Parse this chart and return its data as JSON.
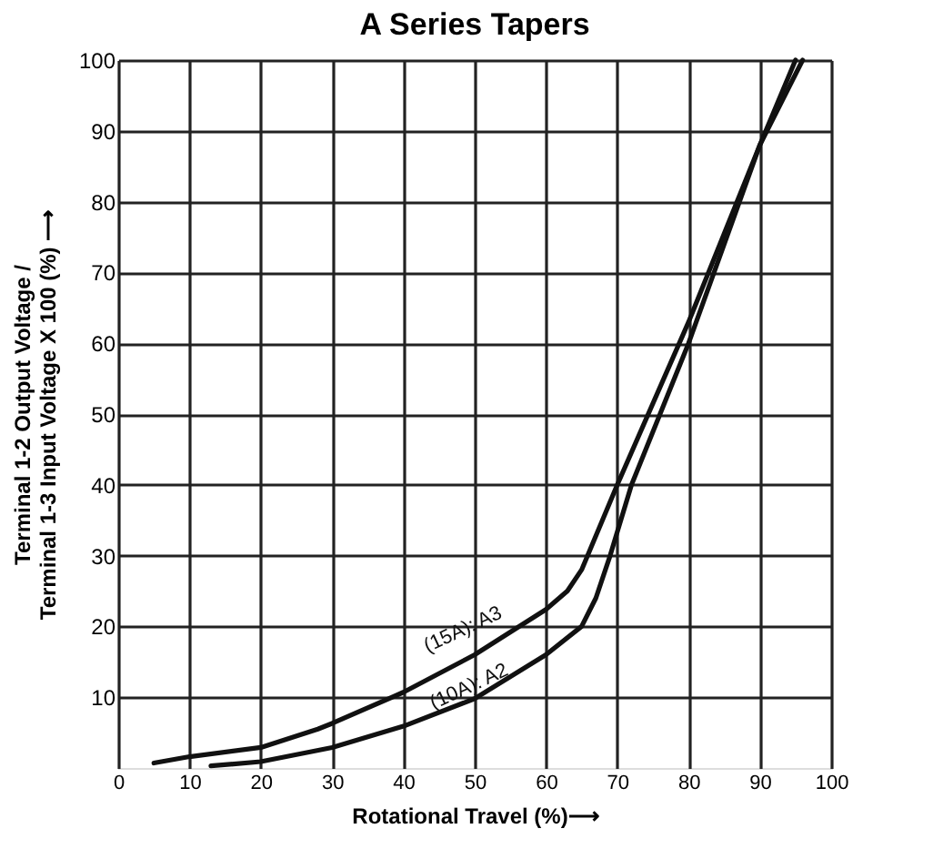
{
  "chart_data": {
    "type": "line",
    "title": "A Series Tapers",
    "xlabel": "Rotational Travel (%)⟶",
    "ylabel": "Terminal 1-2 Output Voltage / Terminal 1-3 Input Voltage X 100 (%) ⟶",
    "xlim": [
      0,
      100
    ],
    "ylim": [
      0,
      100
    ],
    "xticks": [
      0,
      10,
      20,
      30,
      40,
      50,
      60,
      70,
      80,
      90,
      100
    ],
    "yticks": [
      10,
      20,
      30,
      40,
      50,
      60,
      70,
      80,
      90,
      100
    ],
    "grid": true,
    "legend": false,
    "marker": "none",
    "line_style": "solid",
    "series": [
      {
        "name": "(15A): A3",
        "color": "#111111",
        "x": [
          5,
          10,
          20,
          28,
          30,
          40,
          50,
          60,
          63,
          65,
          70,
          80,
          90,
          95
        ],
        "values": [
          0.7,
          1.6,
          2.9,
          5.5,
          6.3,
          10.7,
          16,
          22.4,
          25,
          28,
          40,
          63,
          88,
          100
        ]
      },
      {
        "name": "(10A): A2",
        "color": "#111111",
        "x": [
          13,
          20,
          30,
          40,
          50,
          60,
          65,
          67,
          69,
          72,
          80,
          90,
          96
        ],
        "values": [
          0.3,
          0.9,
          2.9,
          5.9,
          9.8,
          16,
          20,
          24,
          30,
          40,
          60,
          88,
          100
        ]
      }
    ]
  }
}
